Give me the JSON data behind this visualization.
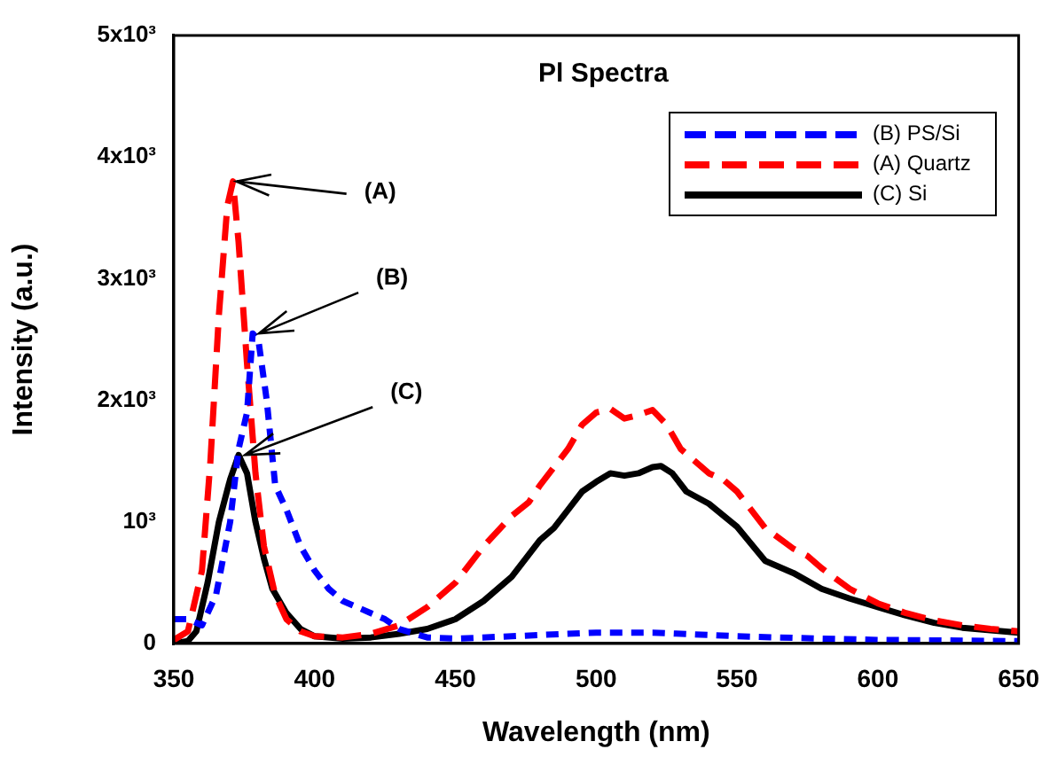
{
  "chart_data": {
    "type": "line",
    "title": "Pl Spectra",
    "xlabel": "Wavelength (nm)",
    "ylabel": "Intensity (a.u.)",
    "xlim": [
      350,
      650
    ],
    "xticks": [
      350,
      400,
      450,
      500,
      550,
      600,
      650
    ],
    "ylim": [
      0,
      5000
    ],
    "yticks": [
      0,
      {
        "value": 1000,
        "label": "10³"
      },
      {
        "value": 2000,
        "label": "2x10³"
      },
      {
        "value": 3000,
        "label": "3x10³"
      },
      {
        "value": 4000,
        "label": "4x10³"
      },
      {
        "value": 5000,
        "label": "5x10³"
      }
    ],
    "legend": "top right",
    "grid": false,
    "marker": "none",
    "annotations": [
      {
        "text": "(A)",
        "x": 371,
        "y": 3800
      },
      {
        "text": "(B)",
        "x": 379,
        "y": 2550
      },
      {
        "text": "(C)",
        "x": 374,
        "y": 1550
      }
    ],
    "series": [
      {
        "name": "(B) PS/Si",
        "color": "#0000ff",
        "line_style": "dotted",
        "x": [
          350,
          355,
          360,
          365,
          370,
          373,
          376,
          378,
          380,
          383,
          386,
          390,
          395,
          400,
          405,
          410,
          420,
          425,
          430,
          440,
          450,
          470,
          500,
          520,
          550,
          580,
          600,
          650
        ],
        "values": [
          200,
          200,
          150,
          400,
          1000,
          1600,
          1900,
          2550,
          2500,
          2000,
          1300,
          1100,
          800,
          600,
          450,
          350,
          250,
          200,
          120,
          50,
          40,
          60,
          90,
          90,
          60,
          40,
          30,
          20
        ]
      },
      {
        "name": "(A) Quartz",
        "color": "#ff0000",
        "line_style": "dashed",
        "x": [
          350,
          355,
          360,
          363,
          366,
          369,
          371,
          373,
          376,
          379,
          382,
          386,
          390,
          395,
          400,
          410,
          420,
          430,
          440,
          450,
          460,
          470,
          476,
          480,
          485,
          490,
          495,
          500,
          505,
          510,
          515,
          520,
          525,
          530,
          535,
          540,
          545,
          550,
          555,
          560,
          570,
          575,
          580,
          590,
          600,
          610,
          620,
          630,
          640,
          650
        ],
        "values": [
          30,
          100,
          600,
          1500,
          2700,
          3600,
          3800,
          3300,
          2300,
          1400,
          800,
          400,
          200,
          100,
          60,
          50,
          80,
          150,
          300,
          500,
          800,
          1050,
          1160,
          1300,
          1450,
          1600,
          1800,
          1900,
          1930,
          1850,
          1880,
          1920,
          1800,
          1600,
          1500,
          1400,
          1350,
          1250,
          1100,
          950,
          780,
          720,
          620,
          450,
          330,
          250,
          190,
          150,
          120,
          100
        ]
      },
      {
        "name": "(C) Si",
        "color": "#000000",
        "line_style": "solid",
        "x": [
          350,
          355,
          358,
          362,
          366,
          370,
          373,
          376,
          379,
          382,
          385,
          390,
          395,
          400,
          410,
          420,
          430,
          440,
          450,
          460,
          470,
          476,
          480,
          485,
          490,
          495,
          500,
          505,
          510,
          515,
          520,
          523,
          527,
          532,
          540,
          550,
          560,
          570,
          580,
          590,
          600,
          610,
          620,
          630,
          640,
          650
        ],
        "values": [
          0,
          20,
          100,
          500,
          1000,
          1350,
          1550,
          1400,
          1000,
          700,
          450,
          250,
          120,
          60,
          40,
          50,
          80,
          120,
          200,
          350,
          550,
          730,
          850,
          950,
          1100,
          1250,
          1330,
          1400,
          1380,
          1400,
          1450,
          1460,
          1400,
          1250,
          1150,
          960,
          680,
          580,
          450,
          370,
          300,
          230,
          170,
          130,
          110,
          90
        ]
      }
    ]
  }
}
